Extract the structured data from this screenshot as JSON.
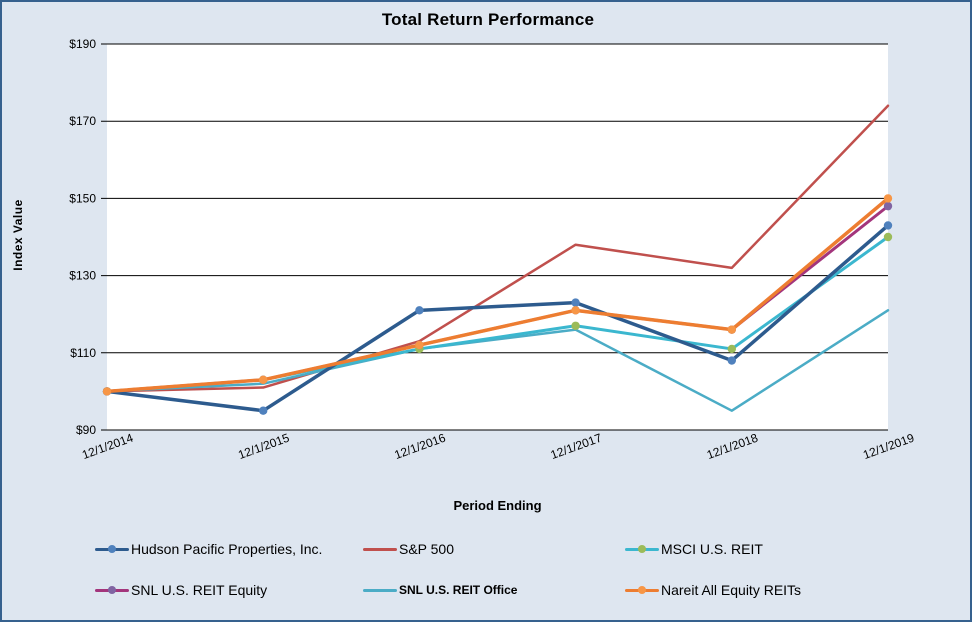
{
  "frame": {
    "background_color": "#dee6f0",
    "border_color": "#36618e",
    "plot_background": "#ffffff",
    "gridline_color": "#000000"
  },
  "chart_data": {
    "type": "line",
    "title": "Total Return Performance",
    "xlabel": "Period Ending",
    "ylabel": "Index Value",
    "ylim": [
      90,
      190
    ],
    "y_ticks": [
      90,
      110,
      130,
      150,
      170,
      190
    ],
    "y_tick_labels": [
      "$90",
      "$110",
      "$130",
      "$150",
      "$170",
      "$190"
    ],
    "grid": "horizontal",
    "legend_position": "bottom",
    "categories": [
      "12/1/2014",
      "12/1/2015",
      "12/1/2016",
      "12/1/2017",
      "12/1/2018",
      "12/1/2019"
    ],
    "series": [
      {
        "name": "Hudson Pacific Properties, Inc.",
        "values": [
          100,
          95,
          121,
          123,
          108,
          143
        ],
        "line_color": "#2d5b8e",
        "marker_color": "#4f81bd",
        "has_marker": true,
        "line_width": 3.5,
        "legend_font": "normal"
      },
      {
        "name": "S&P 500",
        "values": [
          100,
          101,
          113,
          138,
          132,
          174
        ],
        "line_color": "#c0504d",
        "marker_color": null,
        "has_marker": false,
        "line_width": 2.5,
        "legend_font": "normal"
      },
      {
        "name": "MSCI U.S. REIT",
        "values": [
          100,
          103,
          111,
          117,
          111,
          140
        ],
        "line_color": "#3bb7cf",
        "marker_color": "#9bbb59",
        "has_marker": true,
        "line_width": 3,
        "legend_font": "normal"
      },
      {
        "name": "SNL U.S. REIT Equity",
        "values": [
          100,
          103,
          112,
          121,
          116,
          148
        ],
        "line_color": "#a3357c",
        "marker_color": "#8064a2",
        "has_marker": true,
        "line_width": 3,
        "legend_font": "normal"
      },
      {
        "name": "SNL U.S. REIT Office",
        "values": [
          100,
          102,
          111,
          116,
          95,
          121
        ],
        "line_color": "#4bacc6",
        "marker_color": null,
        "has_marker": false,
        "line_width": 2.5,
        "legend_font": "small"
      },
      {
        "name": "Nareit All Equity REITs",
        "values": [
          100,
          103,
          112,
          121,
          116,
          150
        ],
        "line_color": "#ed7d31",
        "marker_color": "#f79646",
        "has_marker": true,
        "line_width": 3.5,
        "legend_font": "normal"
      }
    ]
  }
}
